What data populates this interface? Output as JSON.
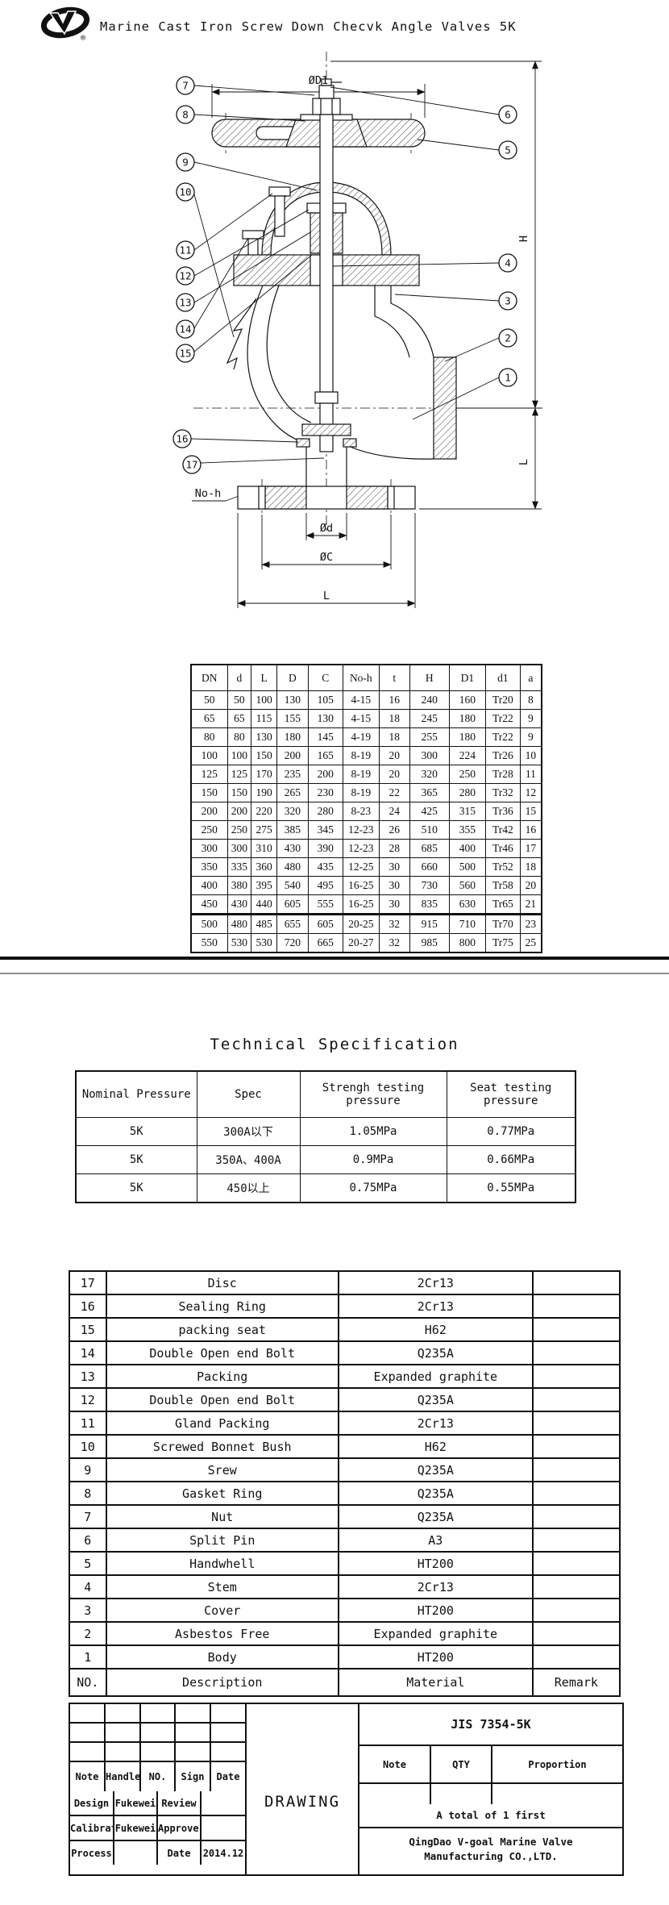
{
  "header": {
    "title": "Marine Cast Iron Screw Down Checvk Angle Valves 5K",
    "registered": "®"
  },
  "drawing": {
    "callouts": [
      "7",
      "8",
      "9",
      "10",
      "11",
      "12",
      "13",
      "14",
      "15",
      "16",
      "17",
      "6",
      "5",
      "4",
      "3",
      "2",
      "1"
    ],
    "dim_labels": {
      "top_diameter": "ØD1",
      "height": "H",
      "right_length": "L",
      "no_h": "No-h",
      "port_diameter": "Ød",
      "bolt_circle": "ØC",
      "bottom_length": "L"
    }
  },
  "dimension_table": {
    "headers": [
      "DN",
      "d",
      "L",
      "D",
      "C",
      "No-h",
      "t",
      "H",
      "D1",
      "d1",
      "a"
    ],
    "rows": [
      [
        "50",
        "50",
        "100",
        "130",
        "105",
        "4-15",
        "16",
        "240",
        "160",
        "Tr20",
        "8"
      ],
      [
        "65",
        "65",
        "115",
        "155",
        "130",
        "4-15",
        "18",
        "245",
        "180",
        "Tr22",
        "9"
      ],
      [
        "80",
        "80",
        "130",
        "180",
        "145",
        "4-19",
        "18",
        "255",
        "180",
        "Tr22",
        "9"
      ],
      [
        "100",
        "100",
        "150",
        "200",
        "165",
        "8-19",
        "20",
        "300",
        "224",
        "Tr26",
        "10"
      ],
      [
        "125",
        "125",
        "170",
        "235",
        "200",
        "8-19",
        "20",
        "320",
        "250",
        "Tr28",
        "11"
      ],
      [
        "150",
        "150",
        "190",
        "265",
        "230",
        "8-19",
        "22",
        "365",
        "280",
        "Tr32",
        "12"
      ],
      [
        "200",
        "200",
        "220",
        "320",
        "280",
        "8-23",
        "24",
        "425",
        "315",
        "Tr36",
        "15"
      ],
      [
        "250",
        "250",
        "275",
        "385",
        "345",
        "12-23",
        "26",
        "510",
        "355",
        "Tr42",
        "16"
      ],
      [
        "300",
        "300",
        "310",
        "430",
        "390",
        "12-23",
        "28",
        "685",
        "400",
        "Tr46",
        "17"
      ],
      [
        "350",
        "335",
        "360",
        "480",
        "435",
        "12-25",
        "30",
        "660",
        "500",
        "Tr52",
        "18"
      ],
      [
        "400",
        "380",
        "395",
        "540",
        "495",
        "16-25",
        "30",
        "730",
        "560",
        "Tr58",
        "20"
      ],
      [
        "450",
        "430",
        "440",
        "605",
        "555",
        "16-25",
        "30",
        "835",
        "630",
        "Tr65",
        "21"
      ],
      [
        "500",
        "480",
        "485",
        "655",
        "605",
        "20-25",
        "32",
        "915",
        "710",
        "Tr70",
        "23"
      ],
      [
        "550",
        "530",
        "530",
        "720",
        "665",
        "20-27",
        "32",
        "985",
        "800",
        "Tr75",
        "25"
      ]
    ]
  },
  "spec": {
    "title": "Technical Specification",
    "headers": [
      "Nominal Pressure",
      "Spec",
      "Strengh testing pressure",
      "Seat testing pressure"
    ],
    "rows": [
      [
        "5K",
        "300A以下",
        "1.05MPa",
        "0.77MPa"
      ],
      [
        "5K",
        "350A、400A",
        "0.9MPa",
        "0.66MPa"
      ],
      [
        "5K",
        "450以上",
        "0.75MPa",
        "0.55MPa"
      ]
    ]
  },
  "parts": {
    "rows": [
      [
        "17",
        "Disc",
        "2Cr13",
        ""
      ],
      [
        "16",
        "Sealing Ring",
        "2Cr13",
        ""
      ],
      [
        "15",
        "packing seat",
        "H62",
        ""
      ],
      [
        "14",
        "Double Open end Bolt",
        "Q235A",
        ""
      ],
      [
        "13",
        "Packing",
        "Expanded graphite",
        ""
      ],
      [
        "12",
        "Double Open end Bolt",
        "Q235A",
        ""
      ],
      [
        "11",
        "Gland Packing",
        "2Cr13",
        ""
      ],
      [
        "10",
        "Screwed Bonnet Bush",
        "H62",
        ""
      ],
      [
        "9",
        "Srew",
        "Q235A",
        ""
      ],
      [
        "8",
        "Gasket Ring",
        "Q235A",
        ""
      ],
      [
        "7",
        "Nut",
        "Q235A",
        ""
      ],
      [
        "6",
        "Split Pin",
        "A3",
        ""
      ],
      [
        "5",
        "Handwhell",
        "HT200",
        ""
      ],
      [
        "4",
        "Stem",
        "2Cr13",
        ""
      ],
      [
        "3",
        "Cover",
        "HT200",
        ""
      ],
      [
        "2",
        "Asbestos Free",
        "Expanded graphite",
        ""
      ],
      [
        "1",
        "Body",
        "HT200",
        ""
      ]
    ],
    "footer": [
      "NO.",
      "Description",
      "Material",
      "Remark"
    ]
  },
  "title_block": {
    "standard": "JIS 7354-5K",
    "drawing_label": "DRAWING",
    "note_row": [
      "Note",
      "Handle",
      "NO.",
      "Sign",
      "Date"
    ],
    "right_headers": [
      "Note",
      "QTY",
      "Proportion"
    ],
    "total": "A total of 1 first",
    "company_line1": "QingDao V-goal Marine Valve",
    "company_line2": "Manufacturing CO.,LTD.",
    "sign_rows": [
      [
        "Design",
        "Fukewei",
        "Review",
        ""
      ],
      [
        "Calibrator",
        "Fukewei",
        "Approver",
        ""
      ],
      [
        "Process",
        "",
        "Date",
        "2014.12"
      ]
    ]
  }
}
